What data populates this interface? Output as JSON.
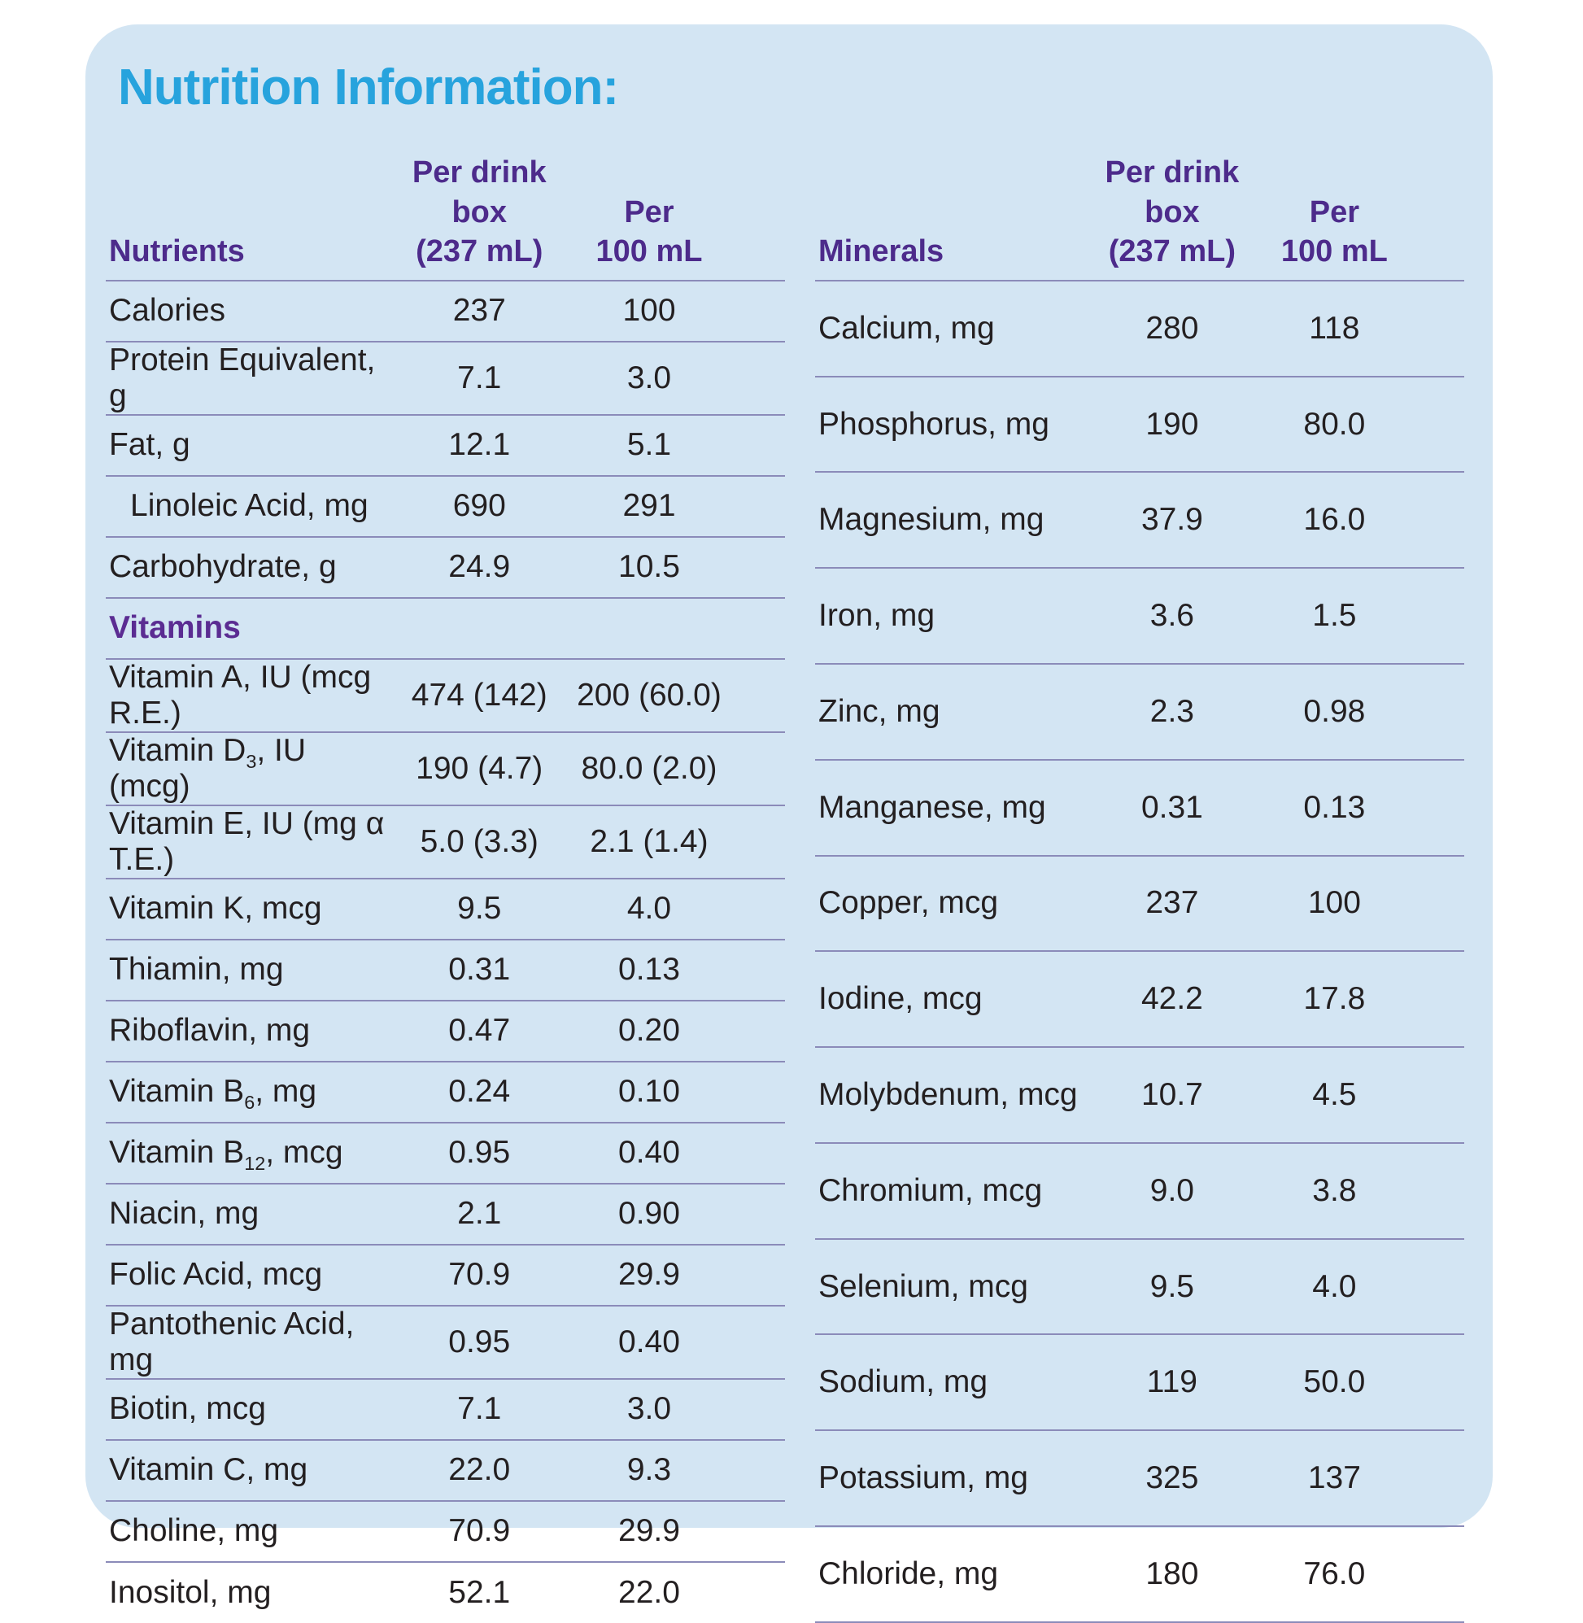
{
  "page_title": "Nutrition Information:",
  "colors": {
    "card_background": "#D3E5F3",
    "title": "#27A3DD",
    "header_purple": "#4D2B8B",
    "section_purple": "#5B2C92",
    "body_text": "#231F20",
    "divider": "#8B8BB9"
  },
  "tables": [
    {
      "name": "nutrients",
      "header": {
        "column1": "Nutrients",
        "column2_line1": "Per drink box",
        "column2_line2": "(237 mL)",
        "column3_line1": "Per",
        "column3_line2": "100 mL"
      },
      "rows": [
        {
          "label": "Calories",
          "per_box": "237",
          "per_100ml": "100"
        },
        {
          "label": "Protein Equivalent, g",
          "per_box": "7.1",
          "per_100ml": "3.0"
        },
        {
          "label": "Fat, g",
          "per_box": "12.1",
          "per_100ml": "5.1"
        },
        {
          "label": "Linoleic Acid, mg",
          "per_box": "690",
          "per_100ml": "291",
          "indent": true
        },
        {
          "label": "Carbohydrate, g",
          "per_box": "24.9",
          "per_100ml": "10.5"
        },
        {
          "section": "Vitamins"
        },
        {
          "label": "Vitamin A, IU (mcg R.E.)",
          "per_box": "474 (142)",
          "per_100ml": "200 (60.0)"
        },
        {
          "label": "Vitamin D|3|, IU (mcg)",
          "per_box": "190 (4.7)",
          "per_100ml": "80.0 (2.0)"
        },
        {
          "label": "Vitamin E, IU (mg α T.E.)",
          "per_box": "5.0 (3.3)",
          "per_100ml": "2.1 (1.4)"
        },
        {
          "label": "Vitamin K, mcg",
          "per_box": "9.5",
          "per_100ml": "4.0"
        },
        {
          "label": "Thiamin, mg",
          "per_box": "0.31",
          "per_100ml": "0.13"
        },
        {
          "label": "Riboflavin, mg",
          "per_box": "0.47",
          "per_100ml": "0.20"
        },
        {
          "label": "Vitamin B|6|, mg",
          "per_box": "0.24",
          "per_100ml": "0.10"
        },
        {
          "label": "Vitamin B|12|, mcg",
          "per_box": "0.95",
          "per_100ml": "0.40"
        },
        {
          "label": "Niacin, mg",
          "per_box": "2.1",
          "per_100ml": "0.90"
        },
        {
          "label": "Folic Acid, mcg",
          "per_box": "70.9",
          "per_100ml": "29.9"
        },
        {
          "label": "Pantothenic Acid, mg",
          "per_box": "0.95",
          "per_100ml": "0.40"
        },
        {
          "label": "Biotin, mcg",
          "per_box": "7.1",
          "per_100ml": "3.0"
        },
        {
          "label": "Vitamin C, mg",
          "per_box": "22.0",
          "per_100ml": "9.3"
        },
        {
          "label": "Choline, mg",
          "per_box": "70.9",
          "per_100ml": "29.9"
        },
        {
          "label": "Inositol, mg",
          "per_box": "52.1",
          "per_100ml": "22.0"
        }
      ]
    },
    {
      "name": "minerals",
      "header": {
        "column1": "Minerals",
        "column2_line1": "Per drink box",
        "column2_line2": "(237 mL)",
        "column3_line1": "Per",
        "column3_line2": "100 mL"
      },
      "rows": [
        {
          "label": "Calcium, mg",
          "per_box": "280",
          "per_100ml": "118"
        },
        {
          "label": "Phosphorus, mg",
          "per_box": "190",
          "per_100ml": "80.0"
        },
        {
          "label": "Magnesium, mg",
          "per_box": "37.9",
          "per_100ml": "16.0"
        },
        {
          "label": "Iron, mg",
          "per_box": "3.6",
          "per_100ml": "1.5"
        },
        {
          "label": "Zinc, mg",
          "per_box": "2.3",
          "per_100ml": "0.98"
        },
        {
          "label": "Manganese, mg",
          "per_box": "0.31",
          "per_100ml": "0.13"
        },
        {
          "label": "Copper, mcg",
          "per_box": "237",
          "per_100ml": "100"
        },
        {
          "label": "Iodine, mcg",
          "per_box": "42.2",
          "per_100ml": "17.8"
        },
        {
          "label": "Molybdenum, mcg",
          "per_box": "10.7",
          "per_100ml": "4.5"
        },
        {
          "label": "Chromium, mcg",
          "per_box": "9.0",
          "per_100ml": "3.8"
        },
        {
          "label": "Selenium, mcg",
          "per_box": "9.5",
          "per_100ml": "4.0"
        },
        {
          "label": "Sodium, mg",
          "per_box": "119",
          "per_100ml": "50.0"
        },
        {
          "label": "Potassium, mg",
          "per_box": "325",
          "per_100ml": "137"
        },
        {
          "label": "Chloride, mg",
          "per_box": "180",
          "per_100ml": "76.0"
        }
      ]
    }
  ]
}
